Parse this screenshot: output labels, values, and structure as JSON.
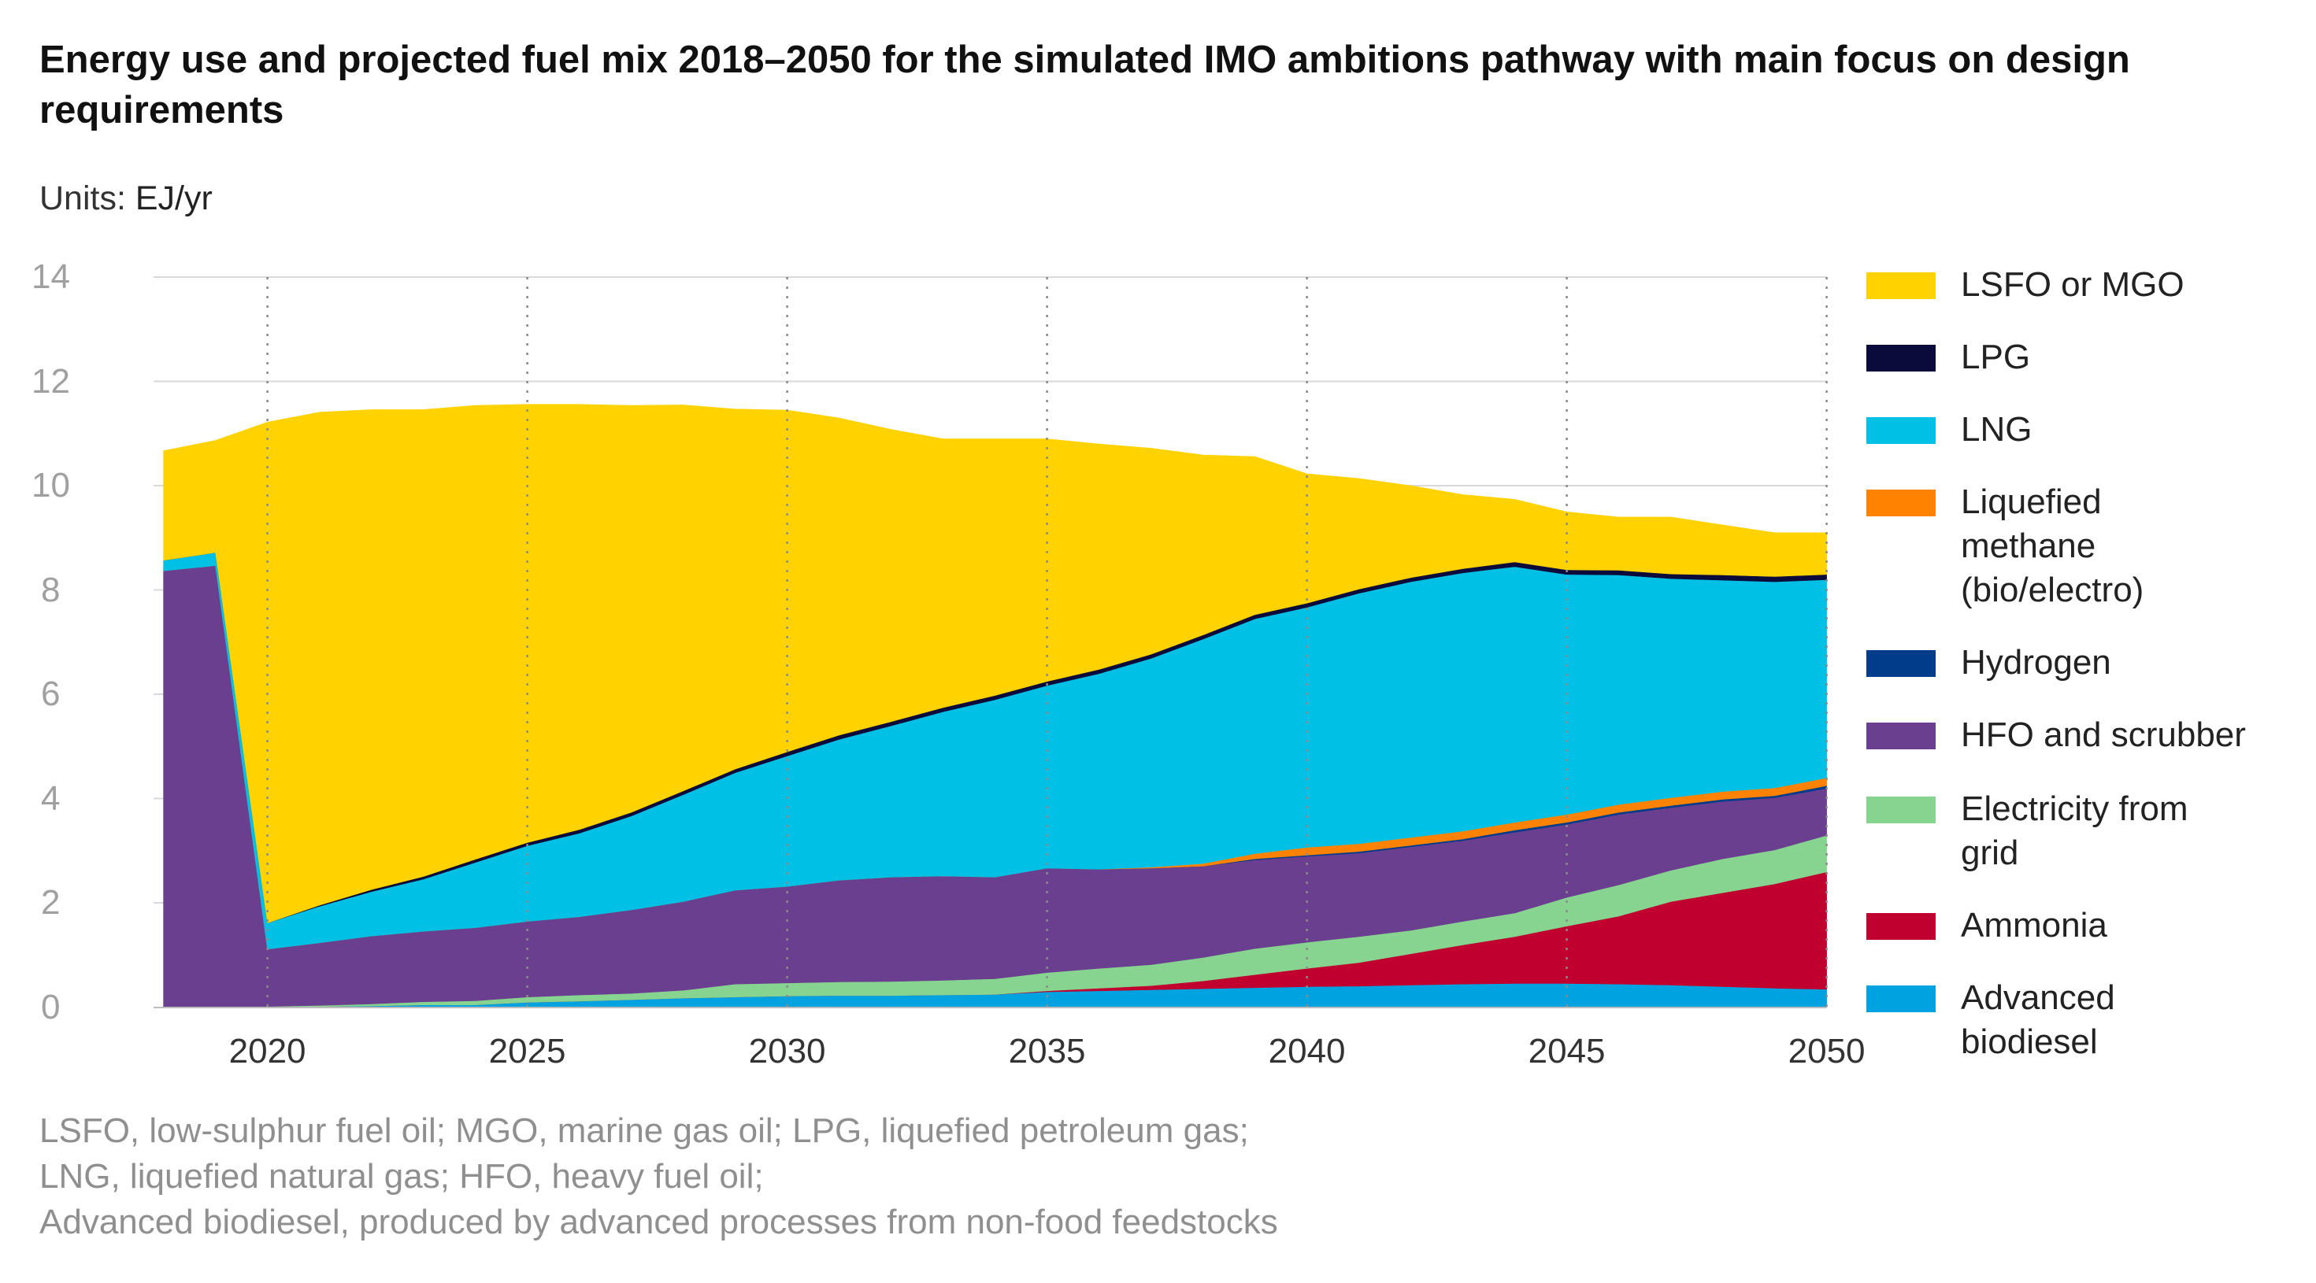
{
  "chart_data": {
    "type": "area",
    "title": "Energy use and projected fuel mix 2018–2050 for the simulated IMO ambitions pathway with main focus on design requirements",
    "units_label": "Units:",
    "units_value": "EJ/yr",
    "xlabel": "",
    "ylabel": "",
    "ylim": [
      0,
      14
    ],
    "xlim": [
      2018,
      2050
    ],
    "yticks": [
      "0",
      "2",
      "4",
      "6",
      "8",
      "10",
      "12",
      "14"
    ],
    "xticks": [
      "2020",
      "2025",
      "2030",
      "2035",
      "2040",
      "2045",
      "2050"
    ],
    "grid": true,
    "legend_position": "right",
    "x": [
      2018,
      2019,
      2020,
      2021,
      2022,
      2023,
      2024,
      2025,
      2026,
      2027,
      2028,
      2029,
      2030,
      2031,
      2032,
      2033,
      2034,
      2035,
      2036,
      2037,
      2038,
      2039,
      2040,
      2041,
      2042,
      2043,
      2044,
      2045,
      2046,
      2047,
      2048,
      2049,
      2050
    ],
    "series": [
      {
        "name": "Advanced biodiesel",
        "color": "#00a3e0",
        "values": [
          0.02,
          0.02,
          0.02,
          0.02,
          0.03,
          0.05,
          0.05,
          0.1,
          0.12,
          0.15,
          0.18,
          0.2,
          0.22,
          0.23,
          0.23,
          0.24,
          0.25,
          0.3,
          0.32,
          0.34,
          0.36,
          0.38,
          0.4,
          0.41,
          0.43,
          0.45,
          0.46,
          0.46,
          0.45,
          0.43,
          0.4,
          0.37,
          0.35
        ]
      },
      {
        "name": "Ammonia",
        "color": "#c0002f",
        "values": [
          0,
          0,
          0,
          0,
          0,
          0,
          0,
          0,
          0,
          0,
          0,
          0,
          0,
          0,
          0,
          0,
          0,
          0.02,
          0.05,
          0.08,
          0.15,
          0.25,
          0.35,
          0.45,
          0.6,
          0.75,
          0.9,
          1.1,
          1.3,
          1.6,
          1.8,
          2.0,
          2.25
        ]
      },
      {
        "name": "Electricity from grid",
        "color": "#86d48f",
        "values": [
          0,
          0,
          0,
          0.02,
          0.04,
          0.06,
          0.08,
          0.1,
          0.12,
          0.12,
          0.15,
          0.25,
          0.25,
          0.26,
          0.27,
          0.28,
          0.3,
          0.35,
          0.38,
          0.4,
          0.45,
          0.5,
          0.5,
          0.5,
          0.45,
          0.45,
          0.45,
          0.55,
          0.6,
          0.6,
          0.65,
          0.65,
          0.7
        ]
      },
      {
        "name": "HFO and scrubber",
        "color": "#6b3f8f",
        "values": [
          8.35,
          8.45,
          1.1,
          1.2,
          1.3,
          1.35,
          1.4,
          1.45,
          1.5,
          1.6,
          1.7,
          1.8,
          1.85,
          1.95,
          2.0,
          2.0,
          1.95,
          2.0,
          1.9,
          1.85,
          1.75,
          1.7,
          1.65,
          1.6,
          1.6,
          1.55,
          1.55,
          1.4,
          1.35,
          1.2,
          1.1,
          1.0,
          0.9
        ]
      },
      {
        "name": "Hydrogen",
        "color": "#003c8a",
        "values": [
          0,
          0,
          0,
          0,
          0,
          0,
          0,
          0,
          0,
          0,
          0,
          0,
          0,
          0,
          0,
          0,
          0,
          0,
          0,
          0,
          0,
          0.02,
          0.02,
          0.03,
          0.03,
          0.03,
          0.04,
          0.04,
          0.04,
          0.04,
          0.04,
          0.04,
          0.05
        ]
      },
      {
        "name": "Liquefied methane (bio/electro)",
        "color": "#ff8200",
        "values": [
          0,
          0,
          0,
          0,
          0,
          0,
          0,
          0,
          0,
          0,
          0,
          0,
          0,
          0,
          0,
          0,
          0,
          0,
          0,
          0.02,
          0.05,
          0.1,
          0.15,
          0.15,
          0.15,
          0.15,
          0.15,
          0.15,
          0.15,
          0.15,
          0.15,
          0.15,
          0.15
        ]
      },
      {
        "name": "LNG",
        "color": "#00c0e6",
        "values": [
          0.2,
          0.25,
          0.5,
          0.7,
          0.85,
          1.0,
          1.25,
          1.45,
          1.6,
          1.8,
          2.05,
          2.25,
          2.5,
          2.7,
          2.9,
          3.15,
          3.4,
          3.5,
          3.75,
          4.0,
          4.3,
          4.5,
          4.6,
          4.8,
          4.9,
          4.95,
          4.9,
          4.6,
          4.4,
          4.2,
          4.05,
          3.95,
          3.8
        ]
      },
      {
        "name": "LPG",
        "color": "#0b0b3b",
        "values": [
          0,
          0,
          0,
          0.02,
          0.04,
          0.05,
          0.06,
          0.06,
          0.07,
          0.07,
          0.07,
          0.07,
          0.08,
          0.08,
          0.08,
          0.08,
          0.08,
          0.08,
          0.08,
          0.08,
          0.08,
          0.08,
          0.08,
          0.08,
          0.08,
          0.08,
          0.09,
          0.09,
          0.09,
          0.09,
          0.1,
          0.1,
          0.1
        ]
      },
      {
        "name": "LSFO or MGO",
        "color": "#ffd200",
        "values": [
          2.1,
          2.15,
          9.6,
          9.45,
          9.2,
          8.95,
          8.7,
          8.4,
          8.15,
          7.8,
          7.4,
          6.9,
          6.55,
          6.08,
          5.6,
          5.15,
          4.92,
          4.65,
          4.32,
          3.95,
          3.45,
          3.03,
          2.48,
          2.12,
          1.76,
          1.42,
          1.2,
          1.11,
          1.02,
          1.09,
          0.96,
          0.84,
          0.8
        ]
      }
    ]
  },
  "legend": [
    {
      "label": "LSFO or MGO",
      "color": "#ffd200"
    },
    {
      "label": "LPG",
      "color": "#0b0b3b"
    },
    {
      "label": "LNG",
      "color": "#00c0e6"
    },
    {
      "label": "Liquefied methane (bio/electro)",
      "color": "#ff8200"
    },
    {
      "label": "Hydrogen",
      "color": "#003c8a"
    },
    {
      "label": "HFO and scrubber",
      "color": "#6b3f8f"
    },
    {
      "label": "Electricity from grid",
      "color": "#86d48f"
    },
    {
      "label": "Ammonia",
      "color": "#c0002f"
    },
    {
      "label": "Advanced biodiesel",
      "color": "#00a3e0"
    }
  ],
  "footnote": {
    "line1": "LSFO, low-sulphur fuel oil; MGO, marine gas oil; LPG, liquefied petroleum gas;",
    "line2": "LNG, liquefied natural gas; HFO, heavy fuel oil;",
    "line3": "Advanced biodiesel, produced by advanced processes from non-food feedstocks"
  }
}
